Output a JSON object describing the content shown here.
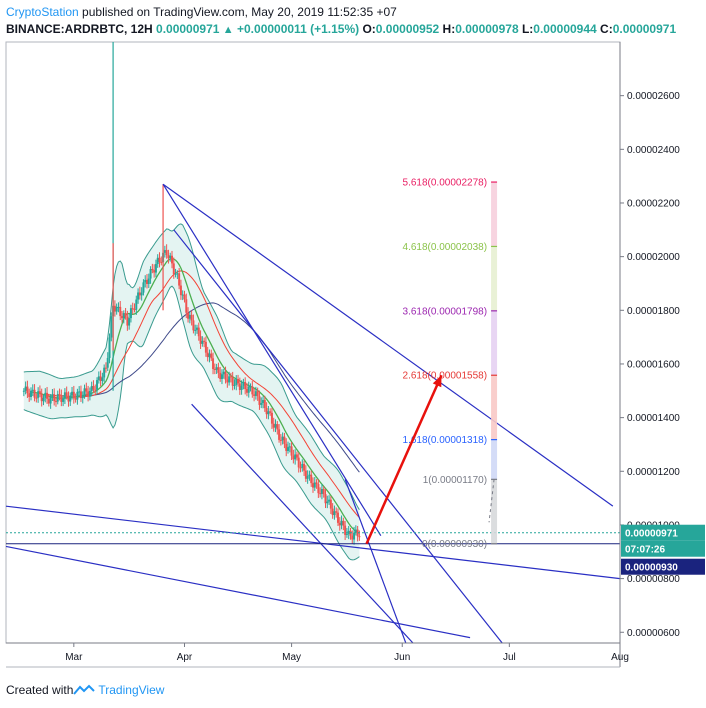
{
  "header": {
    "author": "CryptoStation",
    "published": "published on TradingView.com, May 20, 2019 11:52:35 +07",
    "symbol": "BINANCE:ARDRBTC, 12H",
    "last": "0.00000971",
    "change": "+0.00000011 (+1.15%)",
    "o_label": "O:",
    "o_val": "0.00000952",
    "h_label": "H:",
    "h_val": "0.00000978",
    "l_label": "L:",
    "l_val": "0.00000944",
    "c_label": "C:",
    "c_val": "0.00000971"
  },
  "footer": {
    "created_with": "Created with",
    "brand": "TradingView"
  },
  "colors": {
    "up": "#26a69a",
    "down": "#ef5350",
    "trend": "#2a2fc4",
    "arrow": "#e8110d",
    "ma_green": "#4caf50",
    "ma_red": "#f44336",
    "ma_navy": "#3f4a8a",
    "bb_fill": "#b2dfdb",
    "bb_line": "#3a9b8f"
  },
  "chart_data": {
    "type": "candlestick",
    "symbol": "BINANCE:ARDRBTC",
    "interval": "12H",
    "ylim": [
      5.6e-06,
      2.8e-05
    ],
    "y_ticks": [
      "0.00002600",
      "0.00002400",
      "0.00002200",
      "0.00002000",
      "0.00001800",
      "0.00001600",
      "0.00001400",
      "0.00001200",
      "0.00001000",
      "0.00000800",
      "0.00000600"
    ],
    "x_ticks": [
      "Mar",
      "Apr",
      "May",
      "Jun",
      "Jul",
      "Aug"
    ],
    "price_tags": {
      "last": "0.00000971",
      "countdown": "07:07:26",
      "support": "0.00000930"
    },
    "fib_levels": [
      {
        "ratio": "0",
        "price": "0.00000930",
        "color": "#787b86"
      },
      {
        "ratio": "1",
        "price": "0.00001170",
        "color": "#787b86"
      },
      {
        "ratio": "1.618",
        "price": "0.00001318",
        "color": "#2962ff"
      },
      {
        "ratio": "2.618",
        "price": "0.00001558",
        "color": "#e53935"
      },
      {
        "ratio": "3.618",
        "price": "0.00001798",
        "color": "#9c27b0"
      },
      {
        "ratio": "4.618",
        "price": "0.00002038",
        "color": "#8bc34a"
      },
      {
        "ratio": "5.618",
        "price": "0.00002278",
        "color": "#e91e63"
      }
    ],
    "price_path": [
      [
        "2019-02-15",
        1.5e-05
      ],
      [
        "2019-02-22",
        1.47e-05
      ],
      [
        "2019-03-01",
        1.48e-05
      ],
      [
        "2019-03-06",
        1.5e-05
      ],
      [
        "2019-03-10",
        1.58e-05
      ],
      [
        "2019-03-12",
        1.82e-05
      ],
      [
        "2019-03-16",
        1.76e-05
      ],
      [
        "2019-03-20",
        1.88e-05
      ],
      [
        "2019-03-24",
        1.97e-05
      ],
      [
        "2019-03-27",
        2.02e-05
      ],
      [
        "2019-03-30",
        1.92e-05
      ],
      [
        "2019-04-02",
        1.78e-05
      ],
      [
        "2019-04-06",
        1.68e-05
      ],
      [
        "2019-04-10",
        1.57e-05
      ],
      [
        "2019-04-15",
        1.53e-05
      ],
      [
        "2019-04-20",
        1.5e-05
      ],
      [
        "2019-04-24",
        1.43e-05
      ],
      [
        "2019-04-28",
        1.32e-05
      ],
      [
        "2019-05-02",
        1.25e-05
      ],
      [
        "2019-05-06",
        1.17e-05
      ],
      [
        "2019-05-10",
        1.11e-05
      ],
      [
        "2019-05-14",
        1.02e-05
      ],
      [
        "2019-05-17",
        9.6e-06
      ],
      [
        "2019-05-20",
        9.7e-06
      ]
    ],
    "spikes": [
      [
        "2019-03-12",
        3.2e-05,
        1.5e-05
      ],
      [
        "2019-03-12",
        2.05e-05,
        1.65e-05
      ],
      [
        "2019-03-26",
        2.27e-05,
        1.8e-05
      ]
    ]
  }
}
